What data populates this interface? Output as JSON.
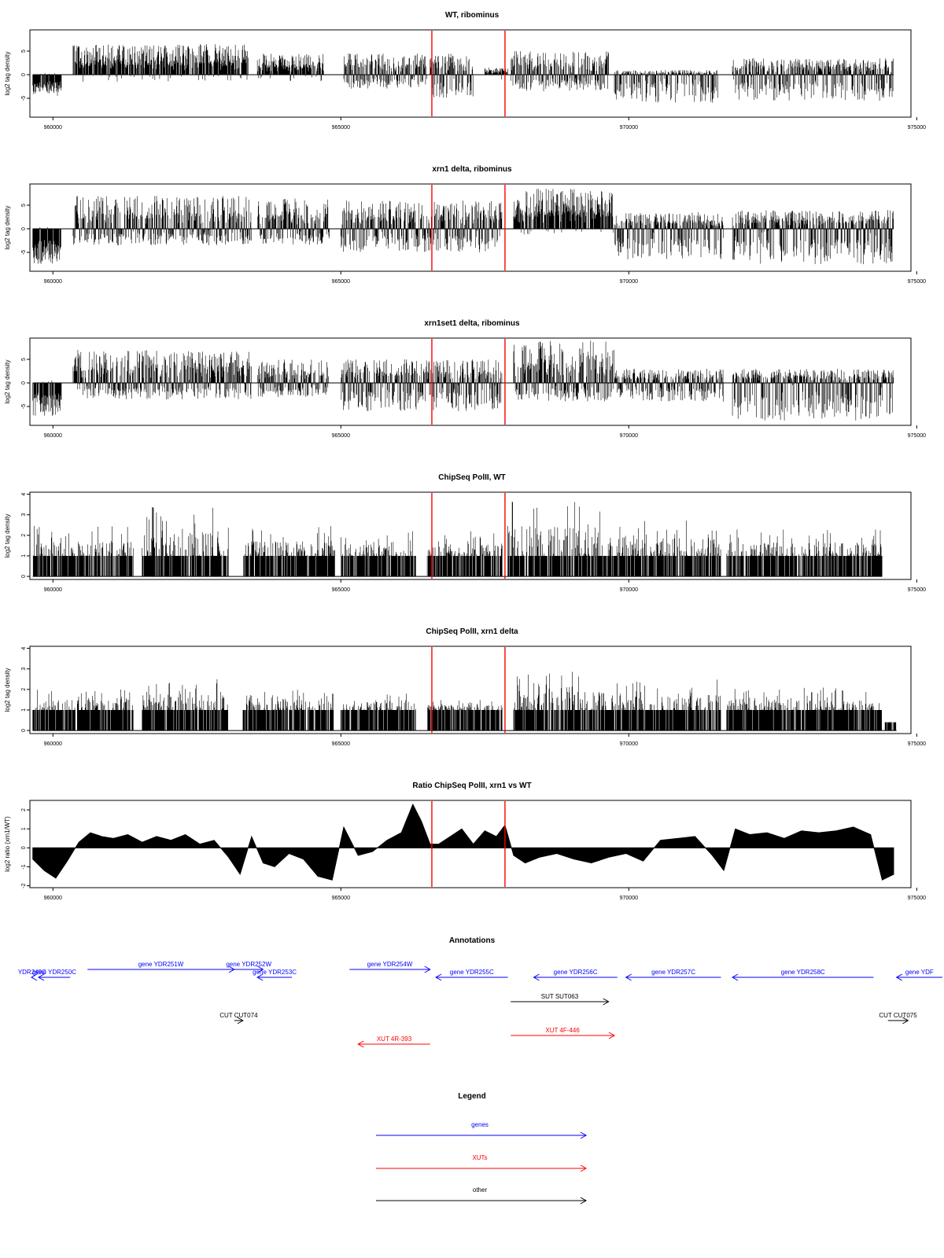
{
  "chart_data": [
    {
      "type": "bar",
      "title": "WT, ribominus",
      "ylabel": "log2 tag density",
      "xlim": [
        959600,
        974900
      ],
      "ylim": [
        -9,
        9.5
      ],
      "yticks": [
        -5,
        0,
        5
      ],
      "xticks": [
        960000,
        965000,
        970000,
        975000
      ],
      "red_lines_x": [
        966580,
        967850
      ],
      "segments": [
        {
          "start": 959650,
          "end": 960150,
          "lo": -4.5,
          "hi": 0
        },
        {
          "start": 960350,
          "end": 963400,
          "lo": -2.5,
          "hi": 6.5
        },
        {
          "start": 963550,
          "end": 964700,
          "lo": -2.5,
          "hi": 4.5
        },
        {
          "start": 965050,
          "end": 966500,
          "lo": -3,
          "hi": 4.5
        },
        {
          "start": 966550,
          "end": 967300,
          "lo": -5,
          "hi": 4.5
        },
        {
          "start": 967500,
          "end": 967900,
          "lo": -2,
          "hi": 1.5
        },
        {
          "start": 967950,
          "end": 969650,
          "lo": -3.5,
          "hi": 5
        },
        {
          "start": 969750,
          "end": 971550,
          "lo": -6,
          "hi": 1
        },
        {
          "start": 971800,
          "end": 974600,
          "lo": -5.5,
          "hi": 3.5
        }
      ]
    },
    {
      "type": "bar",
      "title": "xrn1 delta, ribominus",
      "ylabel": "log2 tag density",
      "xlim": [
        959600,
        974900
      ],
      "ylim": [
        -9,
        9.5
      ],
      "yticks": [
        -5,
        0,
        5
      ],
      "xticks": [
        960000,
        965000,
        970000,
        975000
      ],
      "red_lines_x": [
        966580,
        967850
      ],
      "segments": [
        {
          "start": 959650,
          "end": 960150,
          "lo": -7.5,
          "hi": 0
        },
        {
          "start": 960350,
          "end": 963450,
          "lo": -3.5,
          "hi": 7
        },
        {
          "start": 963550,
          "end": 964800,
          "lo": -3.5,
          "hi": 6.5
        },
        {
          "start": 965000,
          "end": 967800,
          "lo": -5,
          "hi": 6
        },
        {
          "start": 968000,
          "end": 969750,
          "lo": -2,
          "hi": 8.5
        },
        {
          "start": 969750,
          "end": 971650,
          "lo": -6.5,
          "hi": 3.5
        },
        {
          "start": 971800,
          "end": 974600,
          "lo": -7.5,
          "hi": 4
        }
      ]
    },
    {
      "type": "bar",
      "title": "xrn1set1 delta, ribominus",
      "ylabel": "log2 tag density",
      "xlim": [
        959600,
        974900
      ],
      "ylim": [
        -9,
        9.5
      ],
      "yticks": [
        -5,
        0,
        5
      ],
      "xticks": [
        960000,
        965000,
        970000,
        975000
      ],
      "red_lines_x": [
        966580,
        967850
      ],
      "segments": [
        {
          "start": 959650,
          "end": 960150,
          "lo": -7,
          "hi": 0
        },
        {
          "start": 960350,
          "end": 963450,
          "lo": -3.5,
          "hi": 7
        },
        {
          "start": 963550,
          "end": 964800,
          "lo": -3,
          "hi": 5
        },
        {
          "start": 965000,
          "end": 967800,
          "lo": -6,
          "hi": 5
        },
        {
          "start": 968000,
          "end": 969750,
          "lo": -4,
          "hi": 9
        },
        {
          "start": 969750,
          "end": 971650,
          "lo": -4,
          "hi": 3
        },
        {
          "start": 971800,
          "end": 974600,
          "lo": -8,
          "hi": 3
        }
      ]
    },
    {
      "type": "bar",
      "title": "ChipSeq PolII, WT",
      "ylabel": "log2 tag density",
      "xlim": [
        959600,
        974900
      ],
      "ylim": [
        -0.15,
        4.1
      ],
      "yticks": [
        0,
        1,
        2,
        3,
        4
      ],
      "xticks": [
        960000,
        965000,
        970000,
        975000
      ],
      "red_lines_x": [
        966580,
        967850
      ],
      "segments": [
        {
          "start": 959650,
          "end": 961400,
          "lo": 0,
          "hi": 2.5
        },
        {
          "start": 961550,
          "end": 963050,
          "lo": 0,
          "hi": 3.4
        },
        {
          "start": 963300,
          "end": 964900,
          "lo": 0,
          "hi": 2.5
        },
        {
          "start": 965000,
          "end": 966300,
          "lo": 0,
          "hi": 2.2
        },
        {
          "start": 966500,
          "end": 967800,
          "lo": 0,
          "hi": 2.2
        },
        {
          "start": 967900,
          "end": 969800,
          "lo": 0,
          "hi": 3.9
        },
        {
          "start": 969800,
          "end": 971600,
          "lo": 0,
          "hi": 2.8
        },
        {
          "start": 971700,
          "end": 974400,
          "lo": 0,
          "hi": 2.3
        }
      ]
    },
    {
      "type": "bar",
      "title": "ChipSeq PolII, xrn1 delta",
      "ylabel": "log2 tag density",
      "xlim": [
        959600,
        974900
      ],
      "ylim": [
        -0.15,
        4.1
      ],
      "yticks": [
        0,
        1,
        2,
        3,
        4
      ],
      "xticks": [
        960000,
        965000,
        970000,
        975000
      ],
      "red_lines_x": [
        966580,
        967850
      ],
      "segments": [
        {
          "start": 959650,
          "end": 961400,
          "lo": 0,
          "hi": 2
        },
        {
          "start": 961550,
          "end": 963050,
          "lo": 0,
          "hi": 2.5
        },
        {
          "start": 963300,
          "end": 964900,
          "lo": 0,
          "hi": 2
        },
        {
          "start": 965000,
          "end": 966300,
          "lo": 0,
          "hi": 1.8
        },
        {
          "start": 966500,
          "end": 967800,
          "lo": 0,
          "hi": 1.5
        },
        {
          "start": 968000,
          "end": 969800,
          "lo": 0,
          "hi": 2.9
        },
        {
          "start": 969800,
          "end": 971600,
          "lo": 0,
          "hi": 2.6
        },
        {
          "start": 971700,
          "end": 974400,
          "lo": 0,
          "hi": 2.1
        },
        {
          "start": 974450,
          "end": 974650,
          "lo": 0,
          "hi": 0.4
        }
      ]
    },
    {
      "type": "area",
      "title": "Ratio ChipSeq PolII, xrn1 vs WT",
      "ylabel": "log2 ratio (xrn1/WT)",
      "xlim": [
        959600,
        974900
      ],
      "ylim": [
        -2.1,
        2.5
      ],
      "yticks": [
        -2,
        -1,
        0,
        1,
        2
      ],
      "xticks": [
        960000,
        965000,
        970000,
        975000
      ],
      "red_lines_x": [
        966580,
        967850
      ],
      "x": [
        959650,
        959850,
        960050,
        960250,
        960450,
        960650,
        960850,
        961050,
        961300,
        961550,
        961800,
        962050,
        962300,
        962550,
        962800,
        963050,
        963250,
        963450,
        963650,
        963850,
        964100,
        964350,
        964600,
        964850,
        965050,
        965300,
        965550,
        965800,
        966050,
        966250,
        966400,
        966550,
        966700,
        966900,
        967100,
        967300,
        967500,
        967700,
        967850,
        968000,
        968200,
        968450,
        968750,
        969050,
        969350,
        969650,
        969950,
        970250,
        970550,
        970850,
        971150,
        971450,
        971650,
        971850,
        972100,
        972400,
        972700,
        973000,
        973300,
        973600,
        973900,
        974200,
        974400,
        974600
      ],
      "y": [
        -0.6,
        -1.2,
        -1.6,
        -0.7,
        0.3,
        0.8,
        0.6,
        0.5,
        0.7,
        0.3,
        0.6,
        0.4,
        0.7,
        0.2,
        0.4,
        -0.5,
        -1.4,
        0.6,
        -0.8,
        -1.0,
        -0.3,
        -0.6,
        -1.5,
        -1.7,
        1.1,
        -0.4,
        -0.2,
        0.4,
        0.8,
        2.3,
        1.4,
        0.2,
        0.2,
        0.6,
        1.0,
        0.2,
        0.9,
        0.6,
        1.2,
        -0.4,
        -0.8,
        -0.5,
        -0.3,
        -0.6,
        -0.8,
        -0.5,
        -0.3,
        -0.7,
        0.4,
        0.5,
        0.6,
        -0.4,
        -1.2,
        1.0,
        0.7,
        0.8,
        0.5,
        0.9,
        0.8,
        0.9,
        1.1,
        0.7,
        -1.7,
        -1.4
      ]
    }
  ],
  "annotations": {
    "title": "Annotations",
    "items": [
      {
        "label": "YDR249C",
        "start": 959100,
        "end": 959650,
        "dir": "left",
        "color": "#0000ff",
        "row": 0
      },
      {
        "label": "gene YDR250C",
        "start": 959750,
        "end": 960300,
        "dir": "left",
        "color": "#0000ff",
        "row": 0
      },
      {
        "label": "gene YDR251W",
        "start": 960600,
        "end": 963150,
        "dir": "right",
        "color": "#0000ff",
        "row": -1
      },
      {
        "label": "gene YDR252W",
        "start": 963150,
        "end": 963650,
        "dir": "right",
        "color": "#0000ff",
        "row": -1
      },
      {
        "label": "gene YDR253C",
        "start": 963550,
        "end": 964150,
        "dir": "left",
        "color": "#0000ff",
        "row": 0
      },
      {
        "label": "gene YDR254W",
        "start": 965150,
        "end": 966550,
        "dir": "right",
        "color": "#0000ff",
        "row": -1
      },
      {
        "label": "gene YDR255C",
        "start": 966650,
        "end": 967900,
        "dir": "left",
        "color": "#0000ff",
        "row": 0
      },
      {
        "label": "gene YDR256C",
        "start": 968350,
        "end": 969800,
        "dir": "left",
        "color": "#0000ff",
        "row": 0
      },
      {
        "label": "gene YDR257C",
        "start": 969950,
        "end": 971600,
        "dir": "left",
        "color": "#0000ff",
        "row": 0
      },
      {
        "label": "gene YDR258C",
        "start": 971800,
        "end": 974250,
        "dir": "left",
        "color": "#0000ff",
        "row": 0
      },
      {
        "label": "gene YDF",
        "start": 974650,
        "end": 975900,
        "dir": "left",
        "color": "#0000ff",
        "row": 0
      },
      {
        "label": "SUT SUT063",
        "start": 967950,
        "end": 969650,
        "dir": "right",
        "color": "#000000",
        "row": 1
      },
      {
        "label": "CUT CUT074",
        "start": 963150,
        "end": 963300,
        "dir": "right",
        "color": "#000000",
        "row": 2
      },
      {
        "label": "CUT CUT075",
        "start": 974500,
        "end": 974850,
        "dir": "right",
        "color": "#000000",
        "row": 2
      },
      {
        "label": "XUT 4F-446",
        "start": 967950,
        "end": 969750,
        "dir": "right",
        "color": "#ff0000",
        "row": 3
      },
      {
        "label": "XUT 4R-393",
        "start": 965300,
        "end": 966550,
        "dir": "left",
        "color": "#ff0000",
        "row": 4
      }
    ]
  },
  "legend": {
    "title": "Legend",
    "items": [
      {
        "label": "genes",
        "color": "#0000ff"
      },
      {
        "label": "XUTs",
        "color": "#ff0000"
      },
      {
        "label": "other",
        "color": "#000000"
      }
    ]
  }
}
